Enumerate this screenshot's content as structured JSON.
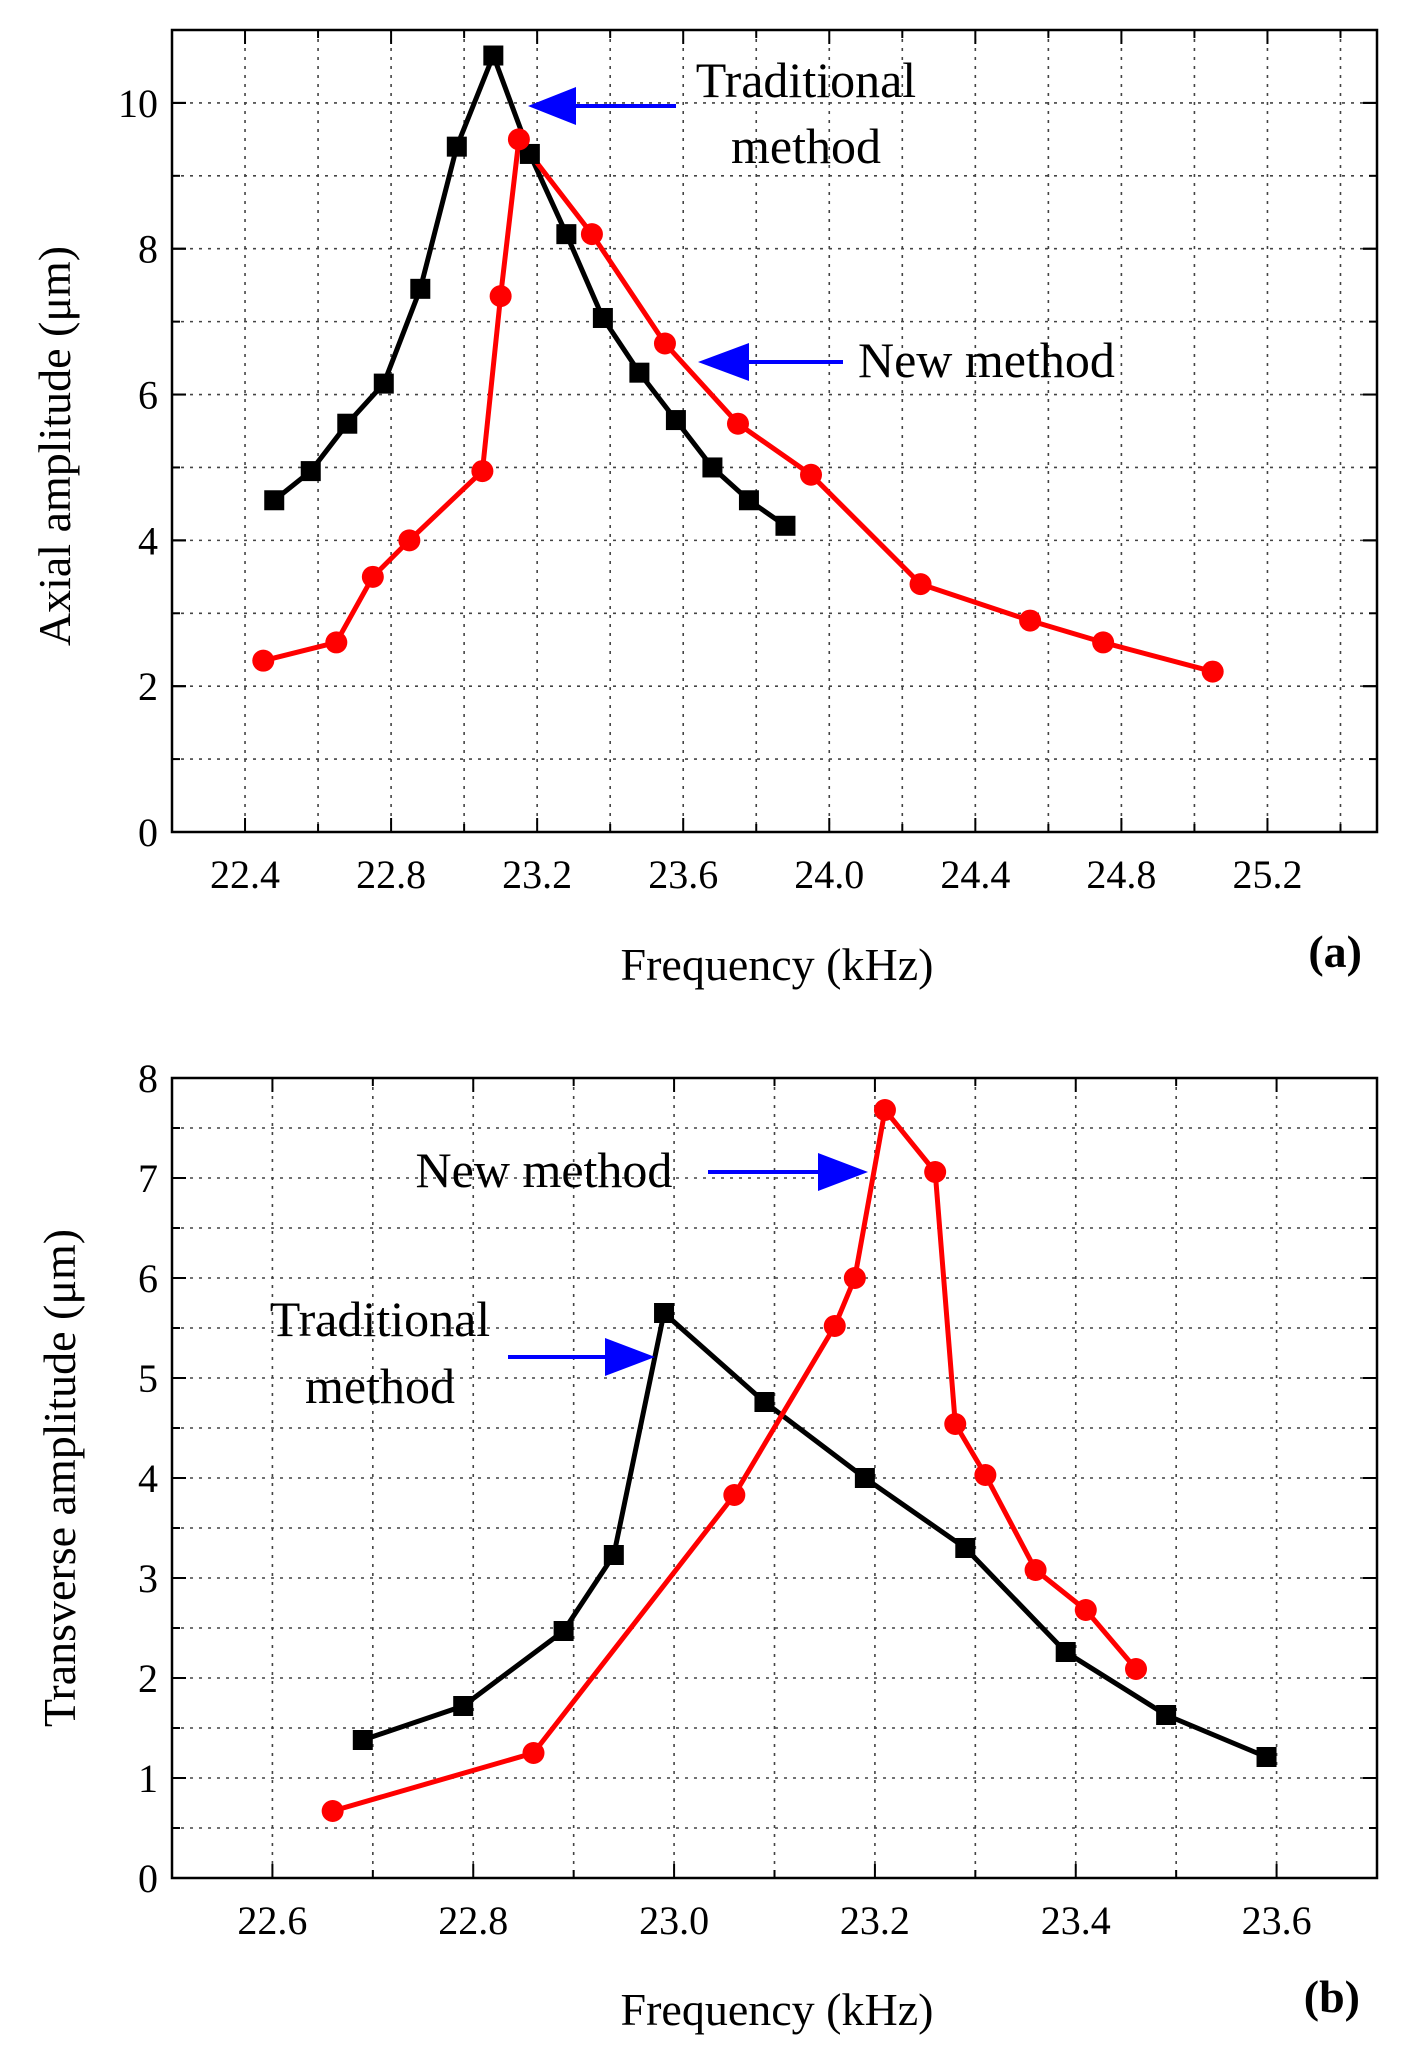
{
  "colors": {
    "traditional": "#000000",
    "new": "#ff0000",
    "arrow": "#0000ff",
    "grid": "#444444"
  },
  "chart_data": [
    {
      "type": "line",
      "panel_label": "(a)",
      "xlabel": "Frequency (kHz)",
      "ylabel": "Axial amplitude (μm)",
      "xlim": [
        22.2,
        25.5
      ],
      "ylim": [
        0,
        11
      ],
      "xticks": [
        22.4,
        22.8,
        23.2,
        23.6,
        24.0,
        24.4,
        24.8,
        25.2
      ],
      "xtick_labels": [
        "22.4",
        "22.8",
        "23.2",
        "23.6",
        "24.0",
        "24.4",
        "24.8",
        "25.2"
      ],
      "yticks": [
        0,
        2,
        4,
        6,
        8,
        10
      ],
      "ytick_labels": [
        "0",
        "2",
        "4",
        "6",
        "8",
        "10"
      ],
      "grid": true,
      "series": [
        {
          "key": "traditional",
          "marker": "square",
          "color": "#000000",
          "x": [
            22.48,
            22.58,
            22.68,
            22.78,
            22.88,
            22.98,
            23.08,
            23.18,
            23.28,
            23.38,
            23.48,
            23.58,
            23.68,
            23.78,
            23.88
          ],
          "y": [
            4.55,
            4.95,
            5.6,
            6.15,
            7.45,
            9.4,
            10.65,
            9.3,
            8.2,
            7.05,
            6.3,
            5.65,
            5.0,
            4.55,
            4.2
          ]
        },
        {
          "key": "new",
          "marker": "circle",
          "color": "#ff0000",
          "x": [
            22.45,
            22.65,
            22.75,
            22.85,
            23.05,
            23.1,
            23.15,
            23.35,
            23.55,
            23.75,
            23.95,
            24.25,
            24.55,
            24.75,
            25.05
          ],
          "y": [
            2.35,
            2.6,
            3.5,
            4.0,
            4.95,
            7.35,
            9.5,
            8.2,
            6.7,
            5.6,
            4.9,
            3.4,
            2.9,
            2.6,
            2.2
          ]
        }
      ],
      "annotations": [
        {
          "lines": [
            "Traditional",
            "method"
          ],
          "points_to": "traditional"
        },
        {
          "lines": [
            "New method"
          ],
          "points_to": "new"
        }
      ]
    },
    {
      "type": "line",
      "panel_label": "(b)",
      "xlabel": "Frequency (kHz)",
      "ylabel": "Transverse amplitude (μm)",
      "xlim": [
        22.5,
        23.7
      ],
      "ylim": [
        0,
        8
      ],
      "xticks": [
        22.6,
        22.8,
        23.0,
        23.2,
        23.4,
        23.6
      ],
      "xtick_labels": [
        "22.6",
        "22.8",
        "23.0",
        "23.2",
        "23.4",
        "23.6"
      ],
      "yticks": [
        0,
        1,
        2,
        3,
        4,
        5,
        6,
        7,
        8
      ],
      "ytick_labels": [
        "0",
        "1",
        "2",
        "3",
        "4",
        "5",
        "6",
        "7",
        "8"
      ],
      "grid": true,
      "series": [
        {
          "key": "traditional",
          "marker": "square",
          "color": "#000000",
          "x": [
            22.69,
            22.79,
            22.89,
            22.94,
            22.99,
            23.09,
            23.19,
            23.29,
            23.39,
            23.49,
            23.59
          ],
          "y": [
            1.38,
            1.72,
            2.47,
            3.23,
            5.65,
            4.76,
            4.0,
            3.3,
            2.26,
            1.63,
            1.21
          ]
        },
        {
          "key": "new",
          "marker": "circle",
          "color": "#ff0000",
          "x": [
            22.66,
            22.86,
            23.06,
            23.16,
            23.18,
            23.21,
            23.26,
            23.28,
            23.31,
            23.36,
            23.41,
            23.46
          ],
          "y": [
            0.67,
            1.25,
            3.83,
            5.52,
            6.0,
            7.68,
            7.06,
            4.54,
            4.03,
            3.08,
            2.68,
            2.09
          ]
        }
      ],
      "annotations": [
        {
          "lines": [
            "New method"
          ],
          "points_to": "new"
        },
        {
          "lines": [
            "Traditional",
            "method"
          ],
          "points_to": "traditional"
        }
      ]
    }
  ]
}
